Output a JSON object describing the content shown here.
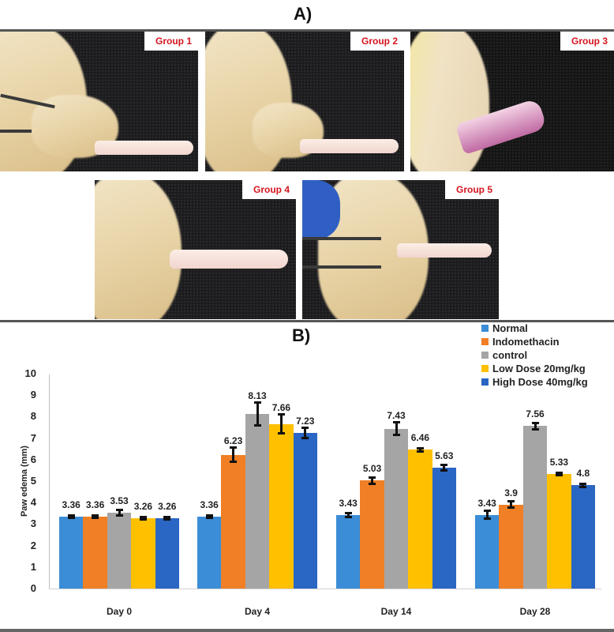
{
  "panel_a": {
    "label": "A)",
    "photos": [
      {
        "label": "Group 1"
      },
      {
        "label": "Group 2"
      },
      {
        "label": "Group 3"
      },
      {
        "label": "Group 4"
      },
      {
        "label": "Group 5"
      }
    ]
  },
  "panel_b": {
    "label": "B)"
  },
  "chart_data": {
    "type": "bar",
    "title": "",
    "xlabel": "",
    "ylabel": "Paw edema (mm)",
    "ylim": [
      0,
      10
    ],
    "yticks": [
      0,
      1,
      2,
      3,
      4,
      5,
      6,
      7,
      8,
      9,
      10
    ],
    "grid": false,
    "legend_position": "top-right",
    "categories": [
      "Day 0",
      "Day 4",
      "Day 14",
      "Day 28"
    ],
    "series": [
      {
        "name": "Normal",
        "color": "#3a8dd6",
        "values": [
          3.36,
          3.36,
          3.43,
          3.43
        ],
        "errors": [
          0.05,
          0.05,
          0.15,
          0.25
        ]
      },
      {
        "name": "Indomethacin",
        "color": "#f07f25",
        "values": [
          3.36,
          6.23,
          5.03,
          3.9
        ],
        "errors": [
          0.05,
          0.4,
          0.2,
          0.2
        ]
      },
      {
        "name": "control",
        "color": "#a5a5a5",
        "values": [
          3.53,
          8.13,
          7.43,
          7.56
        ],
        "errors": [
          0.2,
          0.6,
          0.35,
          0.2
        ]
      },
      {
        "name": "Low Dose 20mg/kg",
        "color": "#ffc000",
        "values": [
          3.26,
          7.66,
          6.46,
          5.33
        ],
        "errors": [
          0.05,
          0.5,
          0.12,
          0.12
        ]
      },
      {
        "name": "High Dose 40mg/kg",
        "color": "#2a66c4",
        "values": [
          3.26,
          7.23,
          5.63,
          4.8
        ],
        "errors": [
          0.05,
          0.3,
          0.18,
          0.12
        ]
      }
    ]
  }
}
